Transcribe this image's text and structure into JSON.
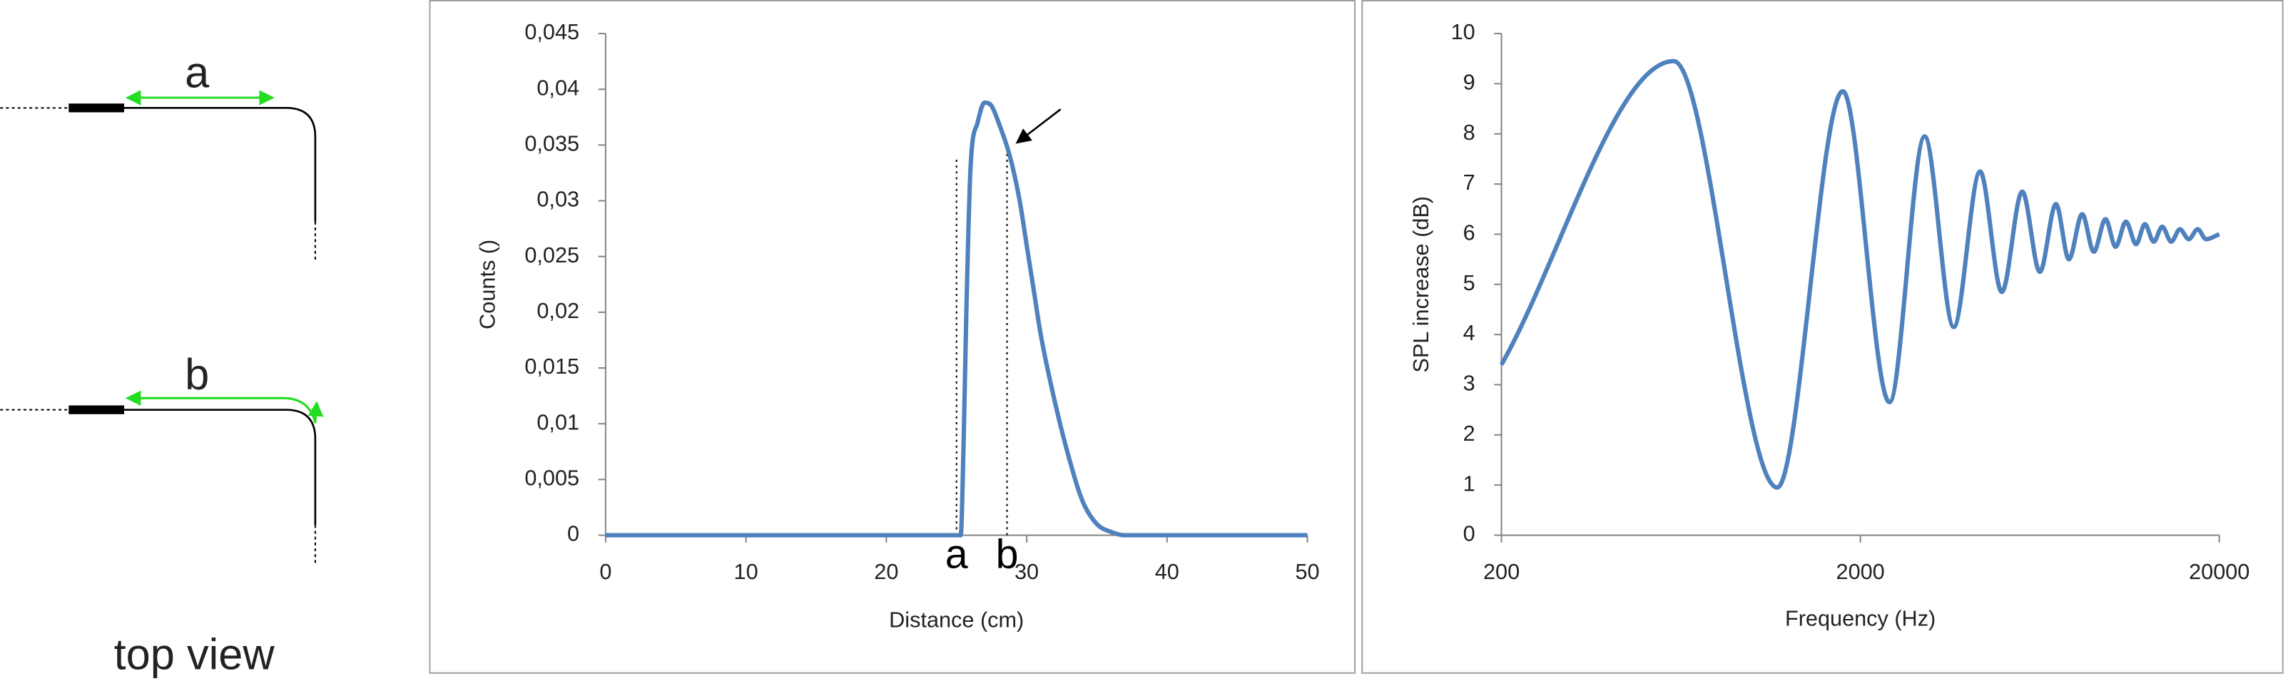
{
  "diagram": {
    "label_a": "a",
    "label_b": "b",
    "caption": "top view"
  },
  "chart_data": [
    {
      "type": "line",
      "xlabel": "Distance (cm)",
      "ylabel": "Counts ()",
      "x": [
        0,
        25,
        25.3,
        25.5,
        25.7,
        26,
        26.5,
        27,
        27.5,
        28,
        28.8,
        29.5,
        30,
        30.5,
        31,
        32,
        33,
        34,
        35,
        36,
        37,
        50
      ],
      "values": [
        0,
        0,
        0,
        0.008,
        0.02,
        0.033,
        0.037,
        0.0388,
        0.0385,
        0.037,
        0.034,
        0.03,
        0.026,
        0.022,
        0.018,
        0.012,
        0.007,
        0.003,
        0.001,
        0.0003,
        0,
        0
      ],
      "color": "#4f81bd",
      "xlim": [
        0,
        50
      ],
      "xticks": [
        0,
        10,
        20,
        30,
        40,
        50
      ],
      "ylim": [
        0,
        0.045
      ],
      "yticks": [
        0,
        {
          "value": 0.005,
          "label": "0,005"
        },
        {
          "value": 0.01,
          "label": "0,01"
        },
        {
          "value": 0.015,
          "label": "0,015"
        },
        {
          "value": 0.02,
          "label": "0,02"
        },
        {
          "value": 0.025,
          "label": "0,025"
        },
        {
          "value": 0.03,
          "label": "0,03"
        },
        {
          "value": 0.035,
          "label": "0,035"
        },
        {
          "value": 0.04,
          "label": "0,04"
        },
        {
          "value": 0.045,
          "label": "0,045"
        }
      ],
      "annotations": [
        {
          "text": "a",
          "x": 25,
          "y": 0.034
        },
        {
          "text": "b",
          "x": 28.6,
          "y": 0.0345
        }
      ],
      "arrow_target": [
        29.3,
        0.0352
      ]
    },
    {
      "type": "line",
      "xlabel": "Frequency (Hz)",
      "ylabel": "SPL increase (dB)",
      "xscale": "log",
      "x": [
        200,
        604,
        1173,
        1787,
        2411,
        3020,
        3640,
        4310,
        4956,
        5650,
        6325,
        7015,
        7620,
        8300,
        8940,
        9640,
        10280,
        10990,
        11730,
        12410,
        13130,
        13870,
        14690,
        15530,
        16440,
        17410,
        18370,
        20000
      ],
      "values": [
        3.4,
        9.45,
        0.95,
        8.85,
        2.65,
        7.95,
        4.15,
        7.25,
        4.85,
        6.85,
        5.25,
        6.6,
        5.5,
        6.4,
        5.65,
        6.3,
        5.75,
        6.25,
        5.8,
        6.2,
        5.85,
        6.15,
        5.85,
        6.1,
        5.9,
        6.1,
        5.9,
        6.0
      ],
      "color": "#4f81bd",
      "xlim": [
        200,
        20000
      ],
      "xticks": [
        200,
        2000,
        20000
      ],
      "ylim": [
        0,
        10
      ],
      "yticks": [
        0,
        1,
        2,
        3,
        4,
        5,
        6,
        7,
        8,
        9,
        10
      ]
    }
  ]
}
